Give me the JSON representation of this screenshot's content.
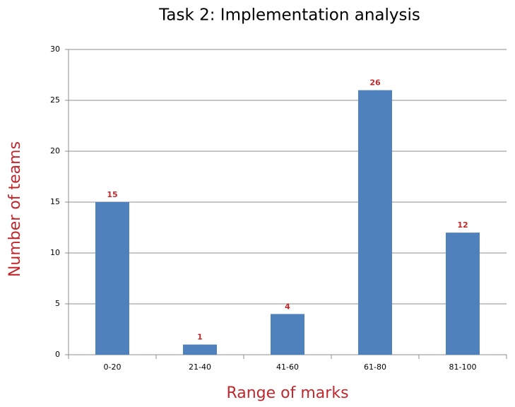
{
  "chart_data": {
    "type": "bar",
    "title": "Task 2: Implementation analysis",
    "x_label": "Range of marks",
    "y_label": "Number of teams",
    "categories": [
      "0-20",
      "21-40",
      "41-60",
      "61-80",
      "81-100"
    ],
    "values": [
      15,
      1,
      4,
      26,
      12
    ],
    "color": "#4f81bd",
    "label_color": "#c0282d",
    "ylim": [
      0,
      30
    ],
    "yticks": [
      0,
      5,
      10,
      15,
      20,
      25,
      30
    ],
    "grid": true
  }
}
